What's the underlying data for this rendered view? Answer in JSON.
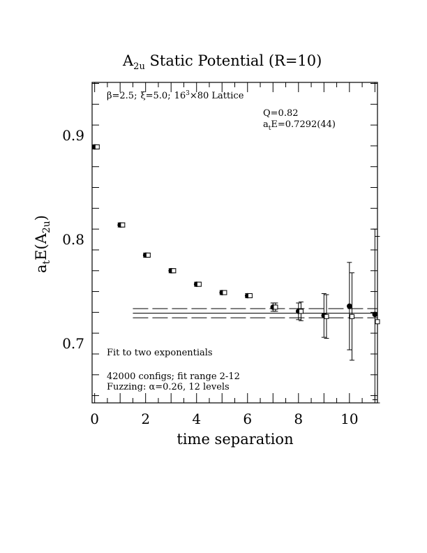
{
  "chart_data": {
    "type": "scatter",
    "title_main": "A",
    "title_sub": "2u",
    "title_rest": " Static Potential (R=10)",
    "xlabel": "time separation",
    "ylabel_main": "a",
    "ylabel_sub1": "t",
    "ylabel_mid": "E(A",
    "ylabel_sub2": "2u",
    "ylabel_end": ")",
    "xlim": [
      -0.1,
      11.1
    ],
    "ylim": [
      0.643,
      0.951
    ],
    "x_ticks": [
      0,
      2,
      4,
      6,
      8,
      10
    ],
    "x_tick_labels": [
      "0",
      "2",
      "4",
      "6",
      "8",
      "10"
    ],
    "y_ticks": [
      0.7,
      0.8,
      0.9
    ],
    "y_tick_labels": [
      "0.7",
      "0.8",
      "0.9"
    ],
    "grid": false,
    "series": [
      {
        "marker": "filled-circle",
        "points": [
          {
            "x": 0,
            "y": 0.889,
            "err": 0.002
          },
          {
            "x": 1,
            "y": 0.814,
            "err": 0.002
          },
          {
            "x": 2,
            "y": 0.785,
            "err": 0.002
          },
          {
            "x": 3,
            "y": 0.77,
            "err": 0.002
          },
          {
            "x": 4,
            "y": 0.757,
            "err": 0.002
          },
          {
            "x": 5,
            "y": 0.749,
            "err": 0.002
          },
          {
            "x": 6,
            "y": 0.746,
            "err": 0.002
          },
          {
            "x": 7,
            "y": 0.735,
            "err": 0.004
          },
          {
            "x": 8,
            "y": 0.731,
            "err": 0.008
          },
          {
            "x": 9,
            "y": 0.727,
            "err": 0.021
          },
          {
            "x": 10,
            "y": 0.736,
            "err": 0.042
          },
          {
            "x": 11,
            "y": 0.728,
            "err": 0.082
          }
        ]
      },
      {
        "marker": "open-square",
        "points": [
          {
            "x": 0.1,
            "y": 0.889,
            "err": 0.002
          },
          {
            "x": 1.1,
            "y": 0.814,
            "err": 0.002
          },
          {
            "x": 2.1,
            "y": 0.785,
            "err": 0.002
          },
          {
            "x": 3.1,
            "y": 0.77,
            "err": 0.002
          },
          {
            "x": 4.1,
            "y": 0.757,
            "err": 0.002
          },
          {
            "x": 5.1,
            "y": 0.749,
            "err": 0.002
          },
          {
            "x": 6.1,
            "y": 0.746,
            "err": 0.002
          },
          {
            "x": 7.1,
            "y": 0.735,
            "err": 0.004
          },
          {
            "x": 8.1,
            "y": 0.731,
            "err": 0.009
          },
          {
            "x": 9.1,
            "y": 0.726,
            "err": 0.021
          },
          {
            "x": 10.1,
            "y": 0.726,
            "err": 0.042
          },
          {
            "x": 11.1,
            "y": 0.721,
            "err": 0.082
          }
        ]
      }
    ],
    "fit": {
      "x_start": 1.5,
      "x_end": 11.1,
      "value": 0.7292,
      "error": 0.0044
    },
    "annotations": {
      "lattice_beta": "β=2.5;",
      "lattice_xi": "ξ=5.0;",
      "lattice_size": "16",
      "lattice_sup": "3",
      "lattice_rest": "×80 Lattice",
      "q_value": "Q=0.82",
      "energy_a": "a",
      "energy_sub": "t",
      "energy_rest": "E=0.7292(44)",
      "fit_method": "Fit to two exponentials",
      "configs": "42000 configs; fit range 2-12",
      "fuzzing": "Fuzzing: α=0.26, 12 levels"
    }
  }
}
